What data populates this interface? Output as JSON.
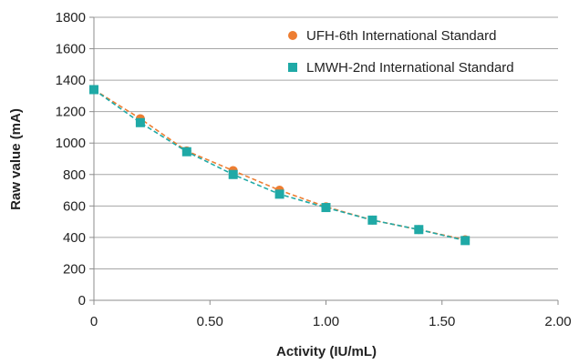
{
  "chart_data": {
    "type": "scatter",
    "title": "",
    "xlabel": "Activity (IU/mL)",
    "ylabel": "Raw value (mA)",
    "xlim": [
      0,
      2.0
    ],
    "ylim": [
      0,
      1800
    ],
    "x_ticks": [
      0,
      0.5,
      1.0,
      1.5,
      2.0
    ],
    "x_tick_labels": [
      "0",
      "0.50",
      "1.00",
      "1.50",
      "2.00"
    ],
    "y_ticks": [
      0,
      200,
      400,
      600,
      800,
      1000,
      1200,
      1400,
      1600,
      1800
    ],
    "y_tick_labels": [
      "0",
      "200",
      "400",
      "600",
      "800",
      "1000",
      "1200",
      "1400",
      "1600",
      "1800"
    ],
    "grid": "horizontal",
    "legend_position": "top-right",
    "series": [
      {
        "name": "UFH-6th International Standard",
        "marker": "circle",
        "color": "#ED7D31",
        "trendline": "dashed",
        "x": [
          0,
          0.2,
          0.4,
          0.6,
          0.8,
          1.0,
          1.2,
          1.4,
          1.6
        ],
        "y": [
          1340,
          1155,
          950,
          825,
          700,
          595,
          510,
          450,
          385
        ]
      },
      {
        "name": "LMWH-2nd International Standard",
        "marker": "square",
        "color": "#1FA9A6",
        "trendline": "dashed",
        "x": [
          0,
          0.2,
          0.4,
          0.6,
          0.8,
          1.0,
          1.2,
          1.4,
          1.6
        ],
        "y": [
          1340,
          1130,
          945,
          800,
          675,
          590,
          510,
          450,
          380
        ]
      }
    ]
  }
}
